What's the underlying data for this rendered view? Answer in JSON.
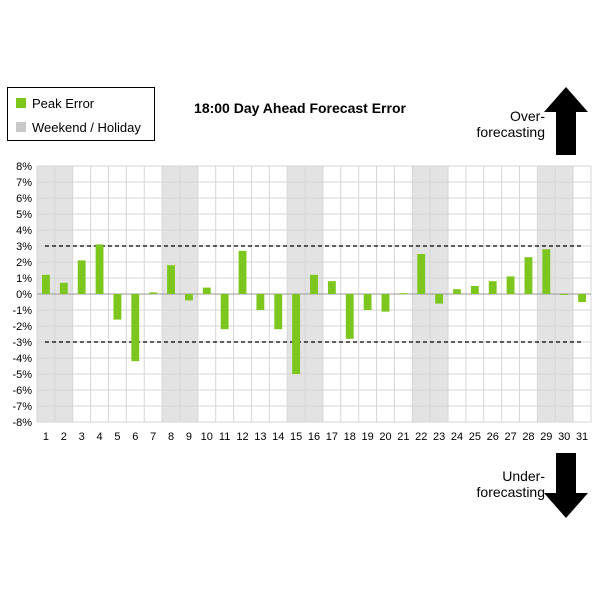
{
  "title": "18:00 Day Ahead Forecast Error",
  "legend": {
    "peak_error": "Peak Error",
    "weekend_holiday": "Weekend / Holiday"
  },
  "annotations": {
    "over_line1": "Over-",
    "over_line2": "forecasting",
    "under_line1": "Under-",
    "under_line2": "forecasting"
  },
  "colors": {
    "bar": "#7dc61e",
    "weekend_shade": "#e3e3e3",
    "arrow": "#000000"
  },
  "icons": [
    "arrow-up-icon",
    "arrow-down-icon"
  ],
  "chart_data": {
    "type": "bar",
    "title": "18:00 Day Ahead Forecast Error",
    "xlabel": "",
    "ylabel": "",
    "categories": [
      "1",
      "2",
      "3",
      "4",
      "5",
      "6",
      "7",
      "8",
      "9",
      "10",
      "11",
      "12",
      "13",
      "14",
      "15",
      "16",
      "17",
      "18",
      "19",
      "20",
      "21",
      "22",
      "23",
      "24",
      "25",
      "26",
      "27",
      "28",
      "29",
      "30",
      "31"
    ],
    "series": [
      {
        "name": "Peak Error",
        "values": [
          1.2,
          0.7,
          2.1,
          3.1,
          -1.6,
          -4.2,
          0.1,
          1.8,
          -0.4,
          0.4,
          -2.2,
          2.7,
          -1.0,
          -2.2,
          -5.0,
          1.2,
          0.8,
          -2.8,
          -1.0,
          -1.1,
          0.05,
          2.5,
          -0.6,
          0.3,
          0.5,
          0.8,
          1.1,
          2.3,
          2.8,
          -0.05,
          -0.5
        ]
      }
    ],
    "weekend_holiday_days": [
      "1",
      "2",
      "8",
      "9",
      "15",
      "16",
      "22",
      "23",
      "29",
      "30"
    ],
    "ylim": [
      -8,
      8
    ],
    "ytick_step": 1,
    "ytick_labels": [
      "8%",
      "7%",
      "6%",
      "5%",
      "4%",
      "3%",
      "2%",
      "1%",
      "0%",
      "-1%",
      "-2%",
      "-3%",
      "-4%",
      "-5%",
      "-6%",
      "-7%",
      "-8%"
    ],
    "reference_lines": [
      3,
      -3
    ],
    "grid": true,
    "legend_position": "top-left"
  }
}
